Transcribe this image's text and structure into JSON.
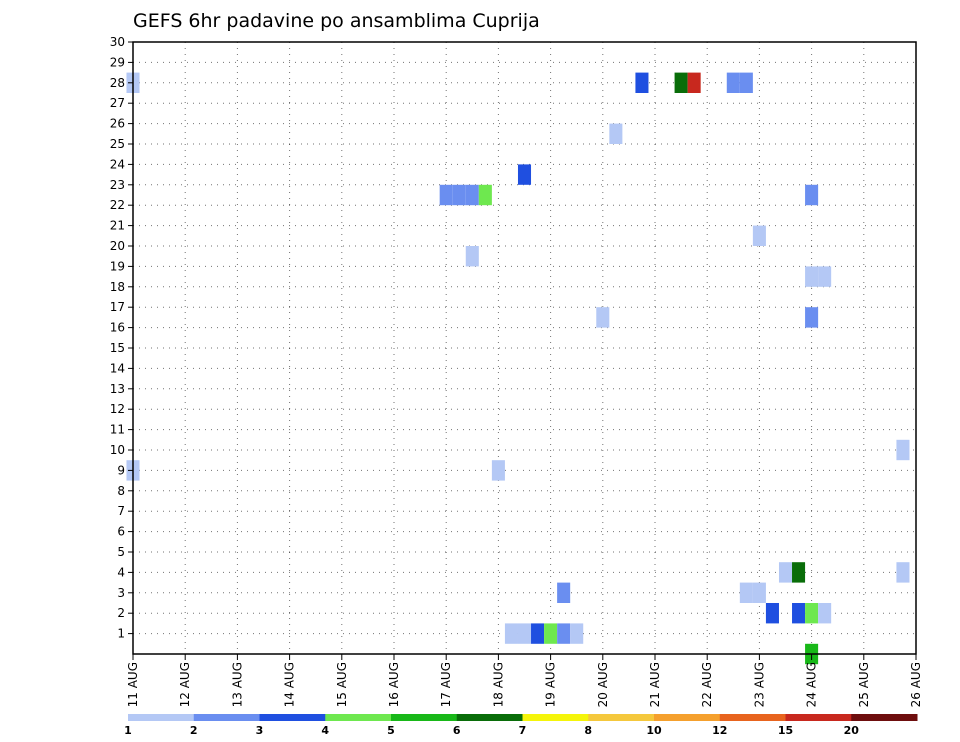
{
  "chart_data": {
    "type": "heatmap",
    "title": "GEFS 6hr padavine po ansamblima Cuprija",
    "xlabel": "",
    "ylabel": "",
    "x_ticks": [
      "11 AUG",
      "12 AUG",
      "13 AUG",
      "14 AUG",
      "15 AUG",
      "16 AUG",
      "17 AUG",
      "18 AUG",
      "19 AUG",
      "20 AUG",
      "21 AUG",
      "22 AUG",
      "23 AUG",
      "24 AUG",
      "25 AUG",
      "26 AUG"
    ],
    "xlim_days": [
      11,
      26
    ],
    "y_ticks": [
      1,
      2,
      3,
      4,
      5,
      6,
      7,
      8,
      9,
      10,
      11,
      12,
      13,
      14,
      15,
      16,
      17,
      18,
      19,
      20,
      21,
      22,
      23,
      24,
      25,
      26,
      27,
      28,
      29,
      30
    ],
    "ylim": [
      0,
      30
    ],
    "grid": true,
    "legend": {
      "placement": "bottom",
      "levels": [
        "1",
        "2",
        "3",
        "4",
        "5",
        "6",
        "7",
        "8",
        "10",
        "12",
        "15",
        "20"
      ],
      "colors": [
        "#b4c8f5",
        "#6a8ef0",
        "#1f4fe0",
        "#6ee84f",
        "#18b818",
        "#096d09",
        "#f5f50a",
        "#f5c83c",
        "#f5a02d",
        "#e8641e",
        "#c8281e",
        "#6e0e0e"
      ]
    },
    "cells": [
      {
        "day": 11.0,
        "member": 9,
        "level": 1
      },
      {
        "day": 11.0,
        "member": 28,
        "level": 1
      },
      {
        "day": 17.0,
        "member": 22.5,
        "level": 2
      },
      {
        "day": 17.25,
        "member": 22.5,
        "level": 2
      },
      {
        "day": 17.5,
        "member": 22.5,
        "level": 2
      },
      {
        "day": 17.75,
        "member": 22.5,
        "level": 4
      },
      {
        "day": 17.5,
        "member": 19.5,
        "level": 1
      },
      {
        "day": 18.0,
        "member": 9,
        "level": 1
      },
      {
        "day": 18.5,
        "member": 23.5,
        "level": 3
      },
      {
        "day": 18.25,
        "member": 1,
        "level": 1
      },
      {
        "day": 18.5,
        "member": 1,
        "level": 1
      },
      {
        "day": 18.75,
        "member": 1,
        "level": 3
      },
      {
        "day": 19.0,
        "member": 1,
        "level": 4
      },
      {
        "day": 19.25,
        "member": 1,
        "level": 2
      },
      {
        "day": 19.5,
        "member": 1,
        "level": 1
      },
      {
        "day": 19.25,
        "member": 3,
        "level": 2
      },
      {
        "day": 20.0,
        "member": 16.5,
        "level": 1
      },
      {
        "day": 20.25,
        "member": 25.5,
        "level": 1
      },
      {
        "day": 20.75,
        "member": 28,
        "level": 3
      },
      {
        "day": 21.5,
        "member": 28,
        "level": 6
      },
      {
        "day": 21.75,
        "member": 28,
        "level": 11
      },
      {
        "day": 22.5,
        "member": 28,
        "level": 2
      },
      {
        "day": 22.75,
        "member": 28,
        "level": 2
      },
      {
        "day": 22.75,
        "member": 3,
        "level": 1
      },
      {
        "day": 23.0,
        "member": 3,
        "level": 1
      },
      {
        "day": 23.0,
        "member": 20.5,
        "level": 1
      },
      {
        "day": 23.25,
        "member": 2,
        "level": 3
      },
      {
        "day": 23.5,
        "member": 4,
        "level": 1
      },
      {
        "day": 23.75,
        "member": 4,
        "level": 6
      },
      {
        "day": 23.75,
        "member": 2,
        "level": 3
      },
      {
        "day": 24.0,
        "member": 2,
        "level": 4
      },
      {
        "day": 24.25,
        "member": 2,
        "level": 1
      },
      {
        "day": 24.0,
        "member": 16.5,
        "level": 2
      },
      {
        "day": 24.0,
        "member": 18.5,
        "level": 1
      },
      {
        "day": 24.25,
        "member": 18.5,
        "level": 1
      },
      {
        "day": 24.0,
        "member": 22.5,
        "level": 2
      },
      {
        "day": 24.0,
        "member": 0,
        "level": 5
      },
      {
        "day": 25.75,
        "member": 4,
        "level": 1
      },
      {
        "day": 25.75,
        "member": 10,
        "level": 1
      }
    ]
  }
}
